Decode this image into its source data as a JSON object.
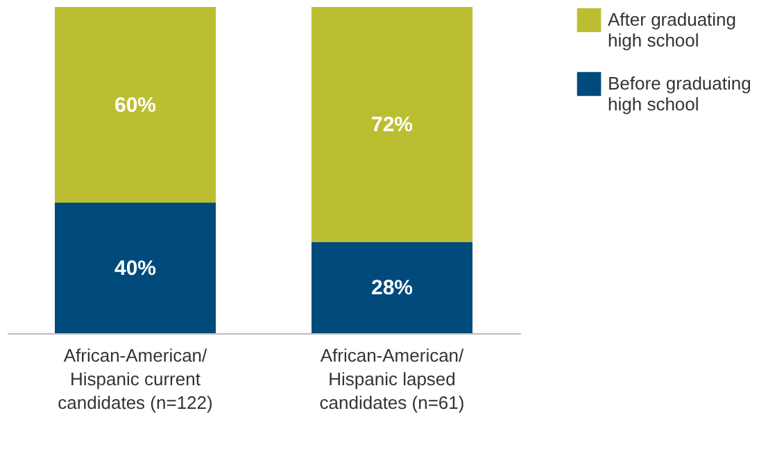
{
  "chart_data": {
    "type": "bar",
    "stacked": true,
    "legend": "top right",
    "categories": [
      "African-American/\nHispanic current\ncandidates (n=122)",
      "African-American/\nHispanic lapsed\ncandidates (n=61)"
    ],
    "series": [
      {
        "name": "Before graduating\nhigh school",
        "color": "#004a7c",
        "values": [
          40,
          28
        ],
        "value_labels": [
          "40%",
          "28%"
        ]
      },
      {
        "name": "After graduating\nhigh school",
        "color": "#bcbe32",
        "values": [
          60,
          72
        ],
        "value_labels": [
          "60%",
          "72%"
        ]
      }
    ]
  }
}
